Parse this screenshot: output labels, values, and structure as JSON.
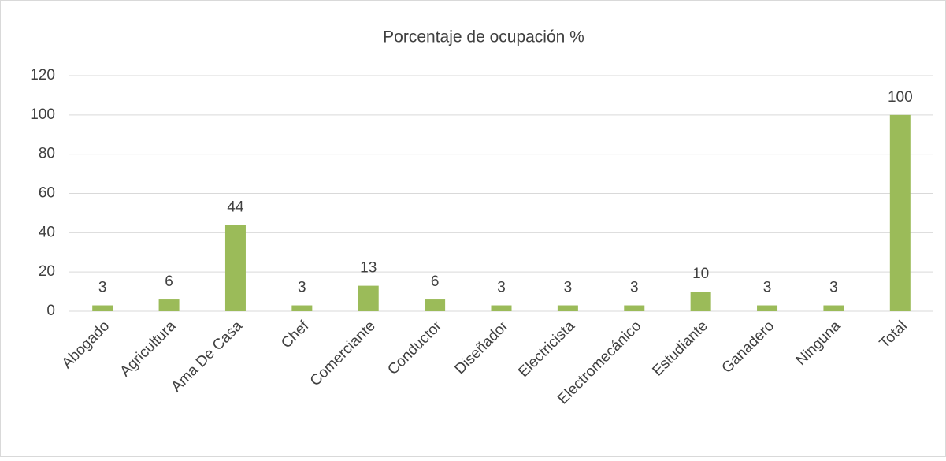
{
  "chart_data": {
    "type": "bar",
    "title": "Porcentaje de ocupación %",
    "categories": [
      "Abogado",
      "Agricultura",
      "Ama De Casa",
      "Chef",
      "Comerciante",
      "Conductor",
      "Diseñador",
      "Electricista",
      "Electromecánico",
      "Estudiante",
      "Ganadero",
      "Ninguna",
      "Total"
    ],
    "values": [
      3,
      6,
      44,
      3,
      13,
      6,
      3,
      3,
      3,
      10,
      3,
      3,
      100
    ],
    "color": "#9bbb59",
    "ylim": [
      0,
      120
    ],
    "yticks": [
      0,
      20,
      40,
      60,
      80,
      100,
      120
    ],
    "grid": true
  }
}
